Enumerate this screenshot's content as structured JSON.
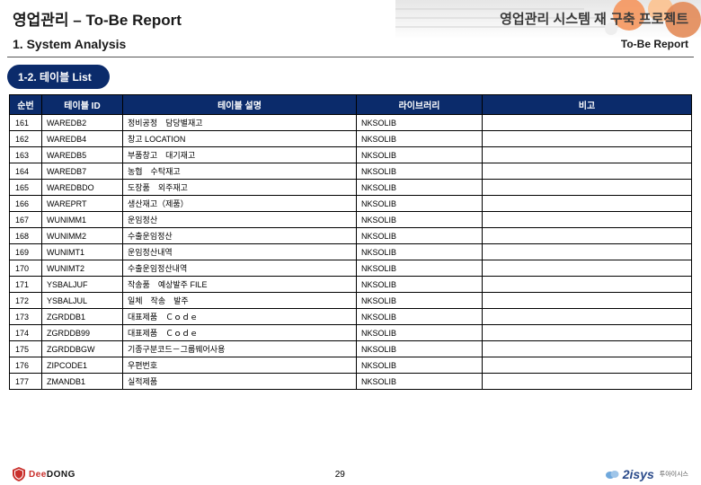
{
  "header": {
    "left": "영업관리 – To-Be Report",
    "right": "영업관리 시스템 재 구축 프로젝트"
  },
  "sub": {
    "left": "1. System Analysis",
    "right": "To-Be Report"
  },
  "section_tab": "1-2. 테이블 List",
  "table": {
    "headers": [
      "순번",
      "테이블 ID",
      "테이블 설명",
      "라이브러리",
      "비고"
    ],
    "rows": [
      [
        "161",
        "WAREDB2",
        "정비공정　담당별재고",
        "NKSOLIB",
        ""
      ],
      [
        "162",
        "WAREDB4",
        "창고 LOCATION",
        "NKSOLIB",
        ""
      ],
      [
        "163",
        "WAREDB5",
        "부품창고　대기재고",
        "NKSOLIB",
        ""
      ],
      [
        "164",
        "WAREDB7",
        "농협　수탁재고",
        "NKSOLIB",
        ""
      ],
      [
        "165",
        "WAREDBDO",
        "도장품　외주재고",
        "NKSOLIB",
        ""
      ],
      [
        "166",
        "WAREPRT",
        "생산재고（제품）",
        "NKSOLIB",
        ""
      ],
      [
        "167",
        "WUNIMM1",
        "운임정산",
        "NKSOLIB",
        ""
      ],
      [
        "168",
        "WUNIMM2",
        "수출운임정산",
        "NKSOLIB",
        ""
      ],
      [
        "169",
        "WUNIMT1",
        "운임정산내역",
        "NKSOLIB",
        ""
      ],
      [
        "170",
        "WUNIMT2",
        "수출운임정산내역",
        "NKSOLIB",
        ""
      ],
      [
        "171",
        "YSBALJUF",
        "작송품　예상발주 FILE",
        "NKSOLIB",
        ""
      ],
      [
        "172",
        "YSBALJUL",
        "일체　작송　발주",
        "NKSOLIB",
        ""
      ],
      [
        "173",
        "ZGRDDB1",
        "대표제품　Ｃｏｄｅ",
        "NKSOLIB",
        ""
      ],
      [
        "174",
        "ZGRDDB99",
        "대표제품　Ｃｏｄｅ",
        "NKSOLIB",
        ""
      ],
      [
        "175",
        "ZGRDDBGW",
        "기종구분코드－그룹웨어사용",
        "NKSOLIB",
        ""
      ],
      [
        "176",
        "ZIPCODE1",
        "우편번호",
        "NKSOLIB",
        ""
      ],
      [
        "177",
        "ZMANDB1",
        "실적제품",
        "NKSOLIB",
        ""
      ]
    ]
  },
  "footer": {
    "left_logo": "DeeDONG",
    "page": "29",
    "right_logo": "2isys",
    "right_sub": "투아이시스"
  },
  "colors": {
    "navy": "#0b2b6b",
    "orange": "#f26a1b",
    "orange_light": "#fca861",
    "grey": "#c4c4c4"
  }
}
